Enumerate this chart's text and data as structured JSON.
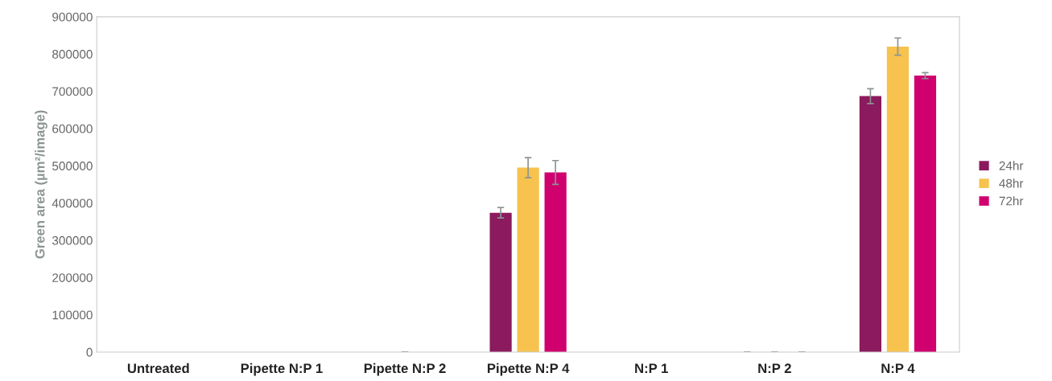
{
  "chart_data": {
    "type": "bar",
    "ylabel": "Green area (µm²/image)",
    "categories": [
      "Untreated",
      "Pipette N:P 1",
      "Pipette N:P 2",
      "Pipette N:P 4",
      "N:P 1",
      "N:P 2",
      "N:P 4"
    ],
    "series": [
      {
        "name": "24hr",
        "color": "#8b1a5e",
        "values": [
          0,
          0,
          0,
          374000,
          0,
          0,
          687000
        ],
        "errors": [
          null,
          null,
          null,
          14000,
          null,
          0,
          20000
        ]
      },
      {
        "name": "48hr",
        "color": "#f7c24e",
        "values": [
          0,
          0,
          0,
          495000,
          0,
          0,
          820000
        ],
        "errors": [
          null,
          null,
          0,
          27000,
          null,
          0,
          23000
        ]
      },
      {
        "name": "72hr",
        "color": "#d1006f",
        "values": [
          0,
          0,
          0,
          482000,
          0,
          0,
          742000
        ],
        "errors": [
          null,
          null,
          null,
          32000,
          null,
          0,
          8000
        ]
      }
    ],
    "ylim": [
      0,
      900000
    ],
    "yticks": [
      0,
      100000,
      200000,
      300000,
      400000,
      500000,
      600000,
      700000,
      800000,
      900000
    ],
    "grid": false,
    "legend": "right"
  }
}
